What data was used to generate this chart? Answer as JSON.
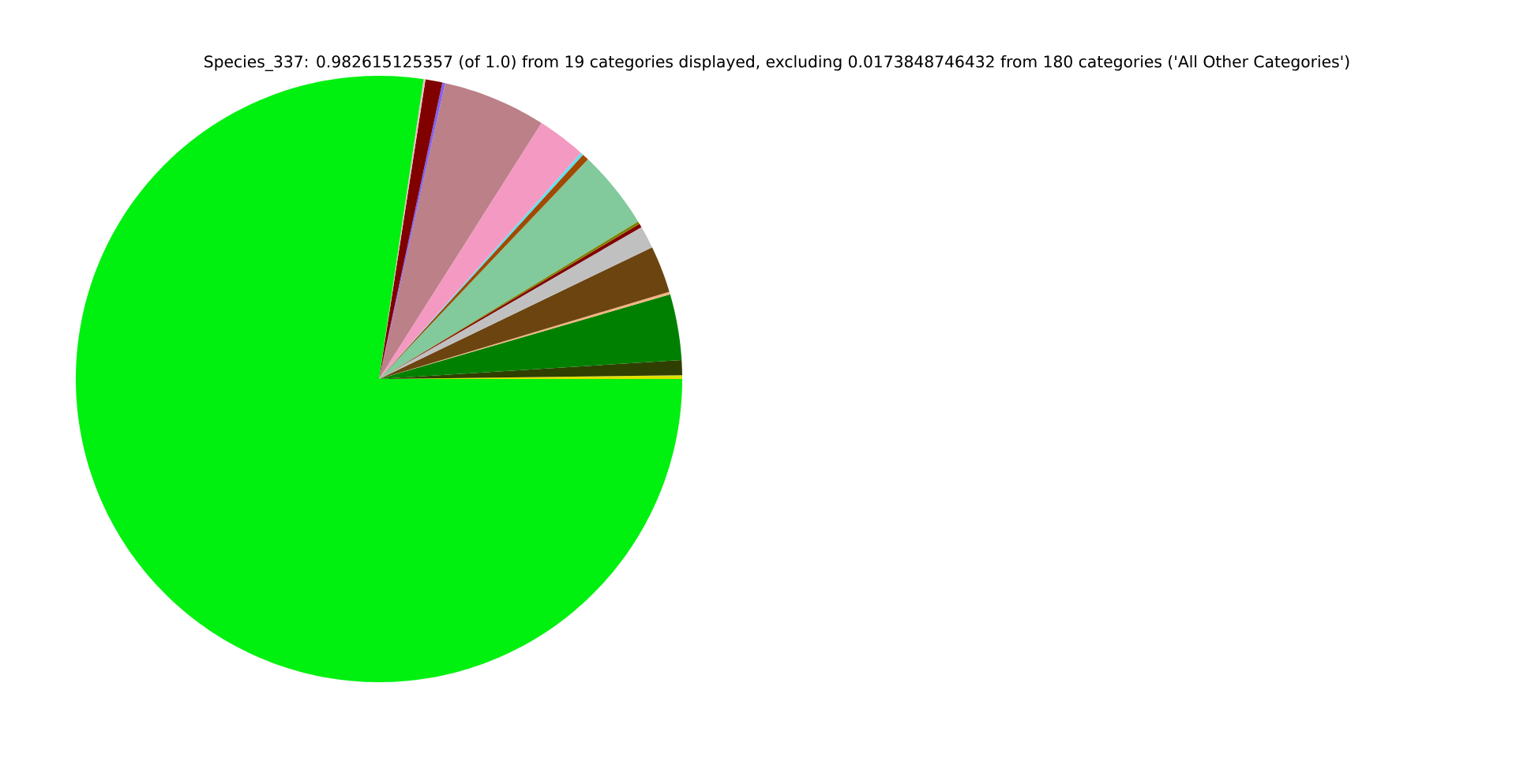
{
  "chart_data": {
    "type": "pie",
    "title": "Species_337: 0.982615125357 (of 1.0) from 19 categories displayed, excluding 0.0173848746432 from 180 categories ('All Other Categories')",
    "categories": [
      null,
      null,
      null,
      null,
      null,
      null,
      null,
      null,
      null,
      null,
      null,
      null,
      null,
      null,
      null,
      null,
      null
    ],
    "values": [
      0.2,
      0.8,
      3.5,
      0.15,
      2.5,
      1.2,
      0.2,
      0.15,
      4.2,
      0.35,
      0.15,
      2.6,
      5.5,
      0.15,
      0.9,
      0.1,
      77.35
    ],
    "colors": [
      "#e0e000",
      "#2f3f00",
      "#008000",
      "#f4b480",
      "#6b4410",
      "#c0c0c0",
      "#800000",
      "#808000",
      "#82c99c",
      "#a04a00",
      "#60e0f0",
      "#f49ac2",
      "#bc8088",
      "#8060f0",
      "#800000",
      "#f0c0c8",
      "#00f010"
    ]
  }
}
